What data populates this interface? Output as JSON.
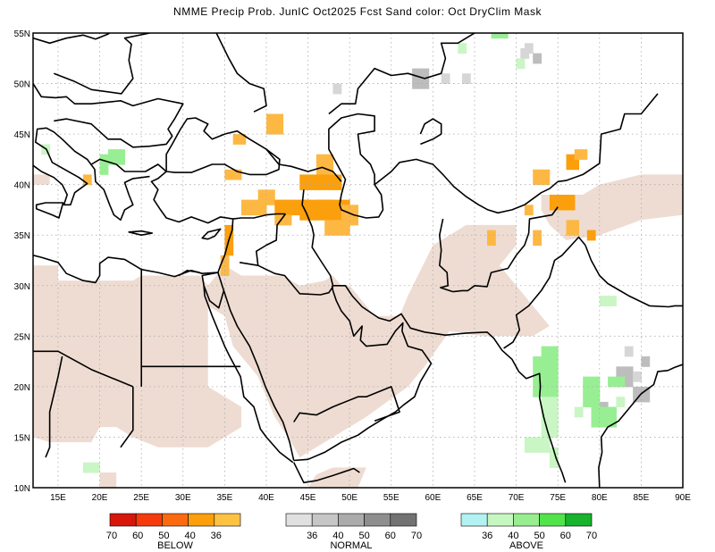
{
  "title": "NMME Precip Prob. JunIC  Oct2025 Fcst  Sand color: Oct DryClim Mask",
  "map": {
    "lon_range": [
      12,
      90
    ],
    "lat_range": [
      10,
      55
    ],
    "x_ticks": [
      "15E",
      "20E",
      "25E",
      "30E",
      "35E",
      "40E",
      "45E",
      "50E",
      "55E",
      "60E",
      "65E",
      "70E",
      "75E",
      "80E",
      "85E",
      "90E"
    ],
    "y_ticks": [
      "55N",
      "50N",
      "45N",
      "40N",
      "35N",
      "30N",
      "25N",
      "20N",
      "15N",
      "10N"
    ],
    "grid": true,
    "colors": {
      "dry_mask": "#eedcd2",
      "below_36": "#fdb844",
      "below_40": "#fb9f0c",
      "normal_36": "#d6d6d6",
      "normal_40": "#bdbdbd",
      "above_36": "#c9f6c4",
      "above_40": "#98ef93",
      "coast": "#000000"
    }
  },
  "legend": {
    "below": {
      "title": "BELOW",
      "ticks": [
        "70",
        "60",
        "50",
        "40",
        "36"
      ],
      "colors": [
        "#d7170b",
        "#f53b0b",
        "#fb6a10",
        "#fb9f0c",
        "#fdc242"
      ]
    },
    "normal": {
      "title": "NORMAL",
      "ticks": [
        "36",
        "40",
        "50",
        "60",
        "70"
      ],
      "colors": [
        "#e0e0e0",
        "#c6c6c6",
        "#ababab",
        "#8e8e8e",
        "#727272"
      ]
    },
    "above": {
      "title": "ABOVE",
      "ticks": [
        "36",
        "40",
        "50",
        "60",
        "70"
      ],
      "colors": [
        "#b3f2f2",
        "#c6f7c1",
        "#98ee8f",
        "#51e44a",
        "#18b22c"
      ]
    }
  }
}
